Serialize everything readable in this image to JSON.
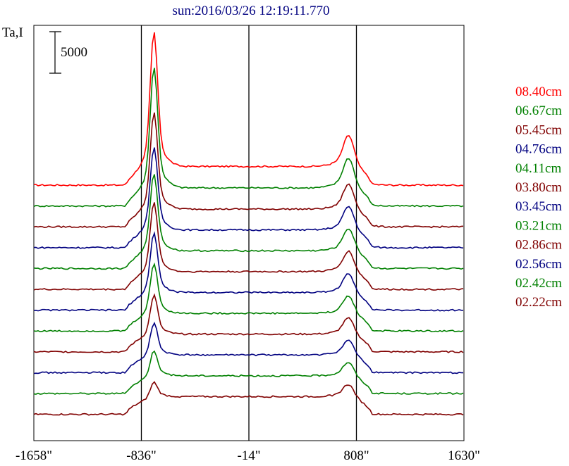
{
  "chart_data": {
    "type": "line",
    "title": "sun:2016/03/26 12:19:11.770",
    "ylabel": "Ta,I",
    "scale_bar": {
      "label": "5000",
      "value": 5000
    },
    "x_ticks": [
      "-1658\"",
      "-836\"",
      "-14\"",
      "808\"",
      "1630\""
    ],
    "x_tick_values": [
      -1658,
      -836,
      -14,
      808,
      1630
    ],
    "xlim": [
      -1658,
      1630
    ],
    "vertical_lines": [
      -836,
      -14,
      808
    ],
    "grid": false,
    "legend_position": "right",
    "series": [
      {
        "name": "08.40cm",
        "color": "#ff0000",
        "peak_left": 1.0,
        "peak_right": 0.52,
        "plateau": 0.95
      },
      {
        "name": "06.67cm",
        "color": "#008000",
        "peak_left": 0.9,
        "peak_right": 0.5,
        "plateau": 0.92
      },
      {
        "name": "05.45cm",
        "color": "#800000",
        "peak_left": 0.72,
        "peak_right": 0.42,
        "plateau": 0.9
      },
      {
        "name": "04.76cm",
        "color": "#000080",
        "peak_left": 0.62,
        "peak_right": 0.4,
        "plateau": 0.9
      },
      {
        "name": "04.11cm",
        "color": "#008000",
        "peak_left": 0.58,
        "peak_right": 0.38,
        "plateau": 0.9
      },
      {
        "name": "03.80cm",
        "color": "#800000",
        "peak_left": 0.52,
        "peak_right": 0.35,
        "plateau": 0.9
      },
      {
        "name": "03.45cm",
        "color": "#000080",
        "peak_left": 0.45,
        "peak_right": 0.32,
        "plateau": 0.9
      },
      {
        "name": "03.21cm",
        "color": "#008000",
        "peak_left": 0.38,
        "peak_right": 0.3,
        "plateau": 0.9
      },
      {
        "name": "02.86cm",
        "color": "#800000",
        "peak_left": 0.3,
        "peak_right": 0.28,
        "plateau": 0.9
      },
      {
        "name": "02.56cm",
        "color": "#000080",
        "peak_left": 0.25,
        "peak_right": 0.26,
        "plateau": 0.9
      },
      {
        "name": "02.42cm",
        "color": "#008000",
        "peak_left": 0.2,
        "peak_right": 0.24,
        "plateau": 0.9
      },
      {
        "name": "02.22cm",
        "color": "#800000",
        "peak_left": 0.12,
        "peak_right": 0.22,
        "plateau": 0.9
      }
    ]
  }
}
